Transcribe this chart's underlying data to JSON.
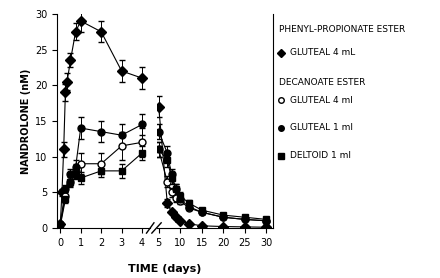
{
  "xlabel": "TIME (days)",
  "ylabel": "NANDROLONE (nM)",
  "ylim": [
    0,
    30
  ],
  "yticks": [
    0,
    5,
    10,
    15,
    20,
    25,
    30
  ],
  "series": {
    "phenyl_gluteal4": {
      "marker": "D",
      "fillstyle": "full",
      "markersize": 5,
      "x_early": [
        0,
        0.083,
        0.167,
        0.25,
        0.333,
        0.5,
        0.75,
        1.0,
        2.0,
        3.0,
        4.0
      ],
      "y_early": [
        0.5,
        5.0,
        11.0,
        19.0,
        20.5,
        23.5,
        27.5,
        29.0,
        27.5,
        22.0,
        21.0
      ],
      "ye_early": [
        0,
        0.5,
        1.0,
        1.2,
        1.2,
        1.0,
        1.2,
        1.5,
        1.5,
        1.5,
        1.5
      ],
      "x_late": [
        5,
        7,
        8,
        9,
        10,
        12,
        15,
        20,
        25,
        30
      ],
      "y_late": [
        17.0,
        3.5,
        2.2,
        1.5,
        1.0,
        0.6,
        0.3,
        0.2,
        0.15,
        0.1
      ],
      "ye_late": [
        1.5,
        0.5,
        0.3,
        0.2,
        0.15,
        0.1,
        0.05,
        0.05,
        0.05,
        0.05
      ]
    },
    "dec_gluteal4": {
      "marker": "o",
      "fillstyle": "none",
      "markersize": 5,
      "x_early": [
        0,
        0.25,
        0.5,
        0.75,
        1.0,
        2.0,
        3.0,
        4.0
      ],
      "y_early": [
        0.5,
        4.5,
        6.5,
        8.0,
        9.0,
        9.0,
        11.5,
        12.0
      ],
      "ye_early": [
        0.2,
        0.5,
        0.8,
        1.0,
        1.5,
        1.5,
        2.0,
        2.0
      ],
      "x_late": [
        5,
        7,
        8,
        9,
        10,
        12,
        15,
        20,
        25,
        30
      ],
      "y_late": [
        11.0,
        6.5,
        5.0,
        4.2,
        3.8,
        2.8,
        2.2,
        1.5,
        1.2,
        1.0
      ],
      "ye_late": [
        1.0,
        0.8,
        0.6,
        0.5,
        0.4,
        0.3,
        0.3,
        0.2,
        0.15,
        0.1
      ]
    },
    "dec_gluteal1": {
      "marker": "o",
      "fillstyle": "full",
      "markersize": 5,
      "x_early": [
        0,
        0.25,
        0.5,
        0.75,
        1.0,
        2.0,
        3.0,
        4.0
      ],
      "y_early": [
        0.5,
        5.5,
        7.5,
        8.5,
        14.0,
        13.5,
        13.0,
        14.5
      ],
      "ye_early": [
        0.2,
        0.5,
        0.8,
        1.0,
        1.5,
        1.5,
        1.5,
        1.5
      ],
      "x_late": [
        5,
        7,
        8,
        9,
        10,
        12,
        15,
        20,
        25,
        30
      ],
      "y_late": [
        13.5,
        10.5,
        7.5,
        5.5,
        4.0,
        3.0,
        2.2,
        1.5,
        1.2,
        1.0
      ],
      "ye_late": [
        1.0,
        1.0,
        0.8,
        0.6,
        0.5,
        0.4,
        0.3,
        0.2,
        0.15,
        0.1
      ]
    },
    "dec_deltoid1": {
      "marker": "s",
      "fillstyle": "full",
      "markersize": 5,
      "x_early": [
        0,
        0.25,
        0.5,
        0.75,
        1.0,
        2.0,
        3.0,
        4.0
      ],
      "y_early": [
        0.3,
        4.0,
        6.5,
        7.5,
        7.0,
        8.0,
        8.0,
        10.5
      ],
      "ye_early": [
        0.2,
        0.5,
        0.6,
        0.7,
        0.8,
        0.8,
        1.0,
        1.0
      ],
      "x_late": [
        5,
        7,
        8,
        9,
        10,
        12,
        15,
        20,
        25,
        30
      ],
      "y_late": [
        11.0,
        9.5,
        7.0,
        5.5,
        4.5,
        3.5,
        2.5,
        1.8,
        1.5,
        1.2
      ],
      "ye_late": [
        1.0,
        1.0,
        0.8,
        0.6,
        0.5,
        0.4,
        0.3,
        0.2,
        0.15,
        0.1
      ]
    }
  },
  "left_xticks": [
    0,
    1,
    2,
    3,
    4
  ],
  "right_xticks": [
    5,
    10,
    15,
    20,
    25,
    30
  ],
  "legend_phenyl_header": "PHENYL-PROPIONATE ESTER",
  "legend_dec_header": "DECANOATE ESTER",
  "legend_entries": [
    {
      "label": "GLUTEAL 4 mL",
      "marker": "D",
      "fill": true
    },
    {
      "label": "GLUTEAL 4 ml",
      "marker": "o",
      "fill": false
    },
    {
      "label": "GLUTEAL 1 ml",
      "marker": "o",
      "fill": true
    },
    {
      "label": "DELTOID 1 ml",
      "marker": "s",
      "fill": true
    }
  ]
}
